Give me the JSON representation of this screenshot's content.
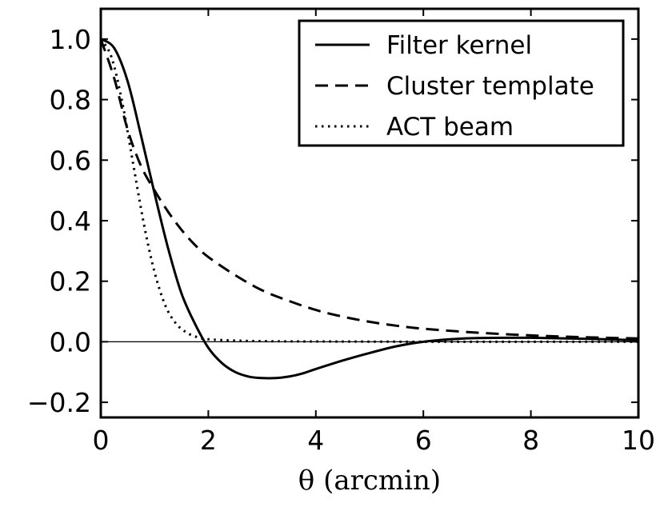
{
  "chart_data": {
    "type": "line",
    "title": "",
    "xlabel": "θ (arcmin)",
    "ylabel": "",
    "xlim": [
      0,
      10
    ],
    "ylim": [
      -0.25,
      1.1
    ],
    "x_ticks": [
      0,
      2,
      4,
      6,
      8,
      10
    ],
    "x_tick_labels": [
      "0",
      "2",
      "4",
      "6",
      "8",
      "10"
    ],
    "y_ticks": [
      -0.2,
      0.0,
      0.2,
      0.4,
      0.6,
      0.8,
      1.0
    ],
    "y_tick_labels": [
      "−0.2",
      "0.0",
      "0.2",
      "0.4",
      "0.6",
      "0.8",
      "1.0"
    ],
    "grid": false,
    "zero_line": true,
    "legend_position": "top-right",
    "series": [
      {
        "name": "Filter kernel",
        "style": "solid",
        "color": "#000000",
        "x": [
          0,
          0.25,
          0.5,
          0.75,
          1.0,
          1.25,
          1.5,
          1.75,
          2.0,
          2.25,
          2.5,
          2.75,
          3.0,
          3.25,
          3.5,
          3.75,
          4.0,
          4.5,
          5.0,
          5.5,
          6.0,
          6.5,
          7.0,
          8.0,
          9.0,
          10.0
        ],
        "y": [
          1.0,
          0.97,
          0.86,
          0.68,
          0.49,
          0.31,
          0.16,
          0.06,
          -0.02,
          -0.07,
          -0.1,
          -0.115,
          -0.12,
          -0.12,
          -0.115,
          -0.105,
          -0.09,
          -0.062,
          -0.037,
          -0.015,
          0.0,
          0.008,
          0.012,
          0.013,
          0.01,
          0.005
        ]
      },
      {
        "name": "Cluster template",
        "style": "dashed",
        "color": "#000000",
        "x": [
          0,
          0.25,
          0.5,
          0.75,
          1.0,
          1.25,
          1.5,
          1.75,
          2.0,
          2.5,
          3.0,
          3.5,
          4.0,
          4.5,
          5.0,
          5.5,
          6.0,
          7.0,
          8.0,
          9.0,
          10.0
        ],
        "y": [
          1.0,
          0.87,
          0.7,
          0.58,
          0.5,
          0.43,
          0.37,
          0.32,
          0.28,
          0.22,
          0.17,
          0.135,
          0.105,
          0.083,
          0.066,
          0.053,
          0.043,
          0.03,
          0.021,
          0.015,
          0.011
        ]
      },
      {
        "name": "ACT beam",
        "style": "dotted",
        "color": "#000000",
        "x": [
          0,
          0.2,
          0.4,
          0.6,
          0.8,
          1.0,
          1.2,
          1.4,
          1.6,
          1.8,
          2.0,
          2.5,
          3.0,
          4.0,
          6.0,
          8.0,
          10.0
        ],
        "y": [
          1.0,
          0.94,
          0.79,
          0.59,
          0.39,
          0.23,
          0.12,
          0.06,
          0.03,
          0.015,
          0.008,
          0.004,
          0.002,
          0.001,
          0.0,
          0.0,
          0.0
        ]
      }
    ]
  }
}
